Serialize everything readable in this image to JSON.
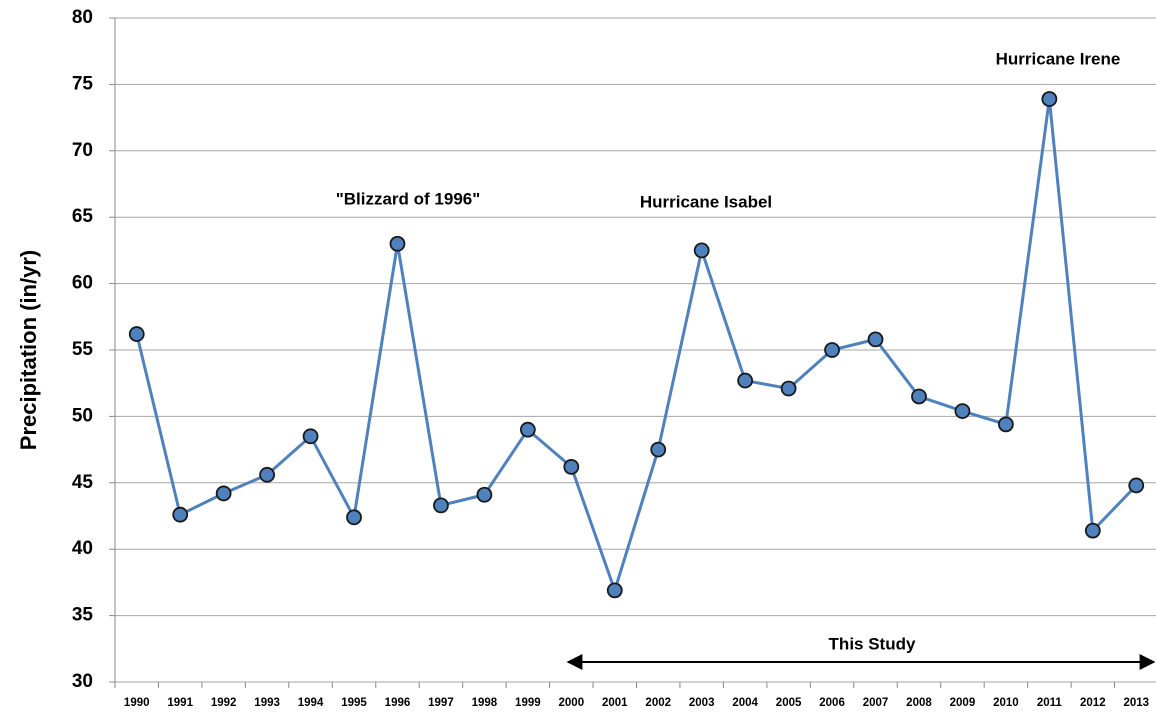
{
  "chart_data": {
    "type": "line",
    "y_label": "Precipitation (in/yr)",
    "categories": [
      "1990",
      "1991",
      "1992",
      "1993",
      "1994",
      "1995",
      "1996",
      "1997",
      "1998",
      "1999",
      "2000",
      "2001",
      "2002",
      "2003",
      "2004",
      "2005",
      "2006",
      "2007",
      "2008",
      "2009",
      "2010",
      "2011",
      "2012",
      "2013"
    ],
    "series": [
      {
        "name": "Precipitation",
        "color": "#4f81bd",
        "values": [
          56.2,
          42.6,
          44.2,
          45.6,
          48.5,
          42.4,
          63.0,
          43.3,
          44.1,
          49.0,
          46.2,
          36.9,
          47.5,
          62.5,
          52.7,
          52.1,
          55.0,
          55.8,
          51.5,
          50.4,
          49.4,
          73.9,
          41.4,
          44.8
        ]
      }
    ],
    "ylim": [
      30,
      80
    ],
    "yticks": [
      30,
      35,
      40,
      45,
      50,
      55,
      60,
      65,
      70,
      75,
      80
    ],
    "grid": true,
    "annotations": [
      "\"Blizzard of 1996\"",
      "Hurricane Isabel",
      "Hurricane Irene",
      "This Study"
    ]
  }
}
